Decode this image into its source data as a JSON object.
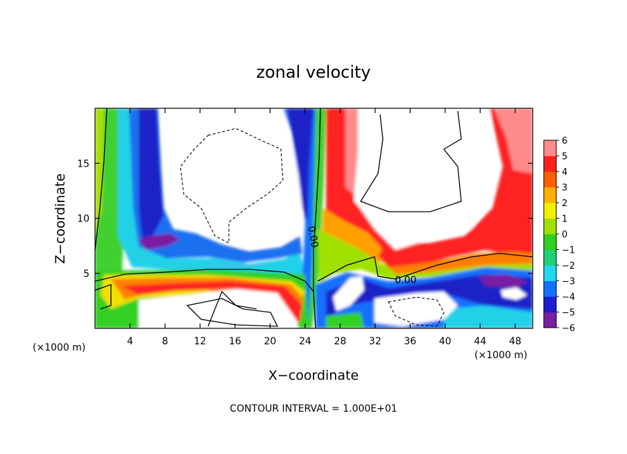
{
  "chart_data": {
    "type": "heatmap",
    "title": "zonal velocity",
    "xlabel": "X−coordinate",
    "ylabel": "Z−coordinate",
    "x_unit_left": "(×1000 m)",
    "x_unit_right": "(×1000 m)",
    "footer": "CONTOUR INTERVAL = 1.000E+01",
    "xlim": [
      0,
      50
    ],
    "ylim": [
      0,
      20
    ],
    "x_ticks": [
      4,
      8,
      12,
      16,
      20,
      24,
      28,
      32,
      36,
      40,
      44,
      48
    ],
    "x_tick_labels": [
      "4",
      "8",
      "12",
      "16",
      "20",
      "24",
      "28",
      "32",
      "36",
      "40",
      "44",
      "48"
    ],
    "y_ticks": [
      5,
      10,
      15
    ],
    "y_tick_labels": [
      "5",
      "10",
      "15"
    ],
    "colorbar": {
      "range": [
        -6,
        6
      ],
      "ticks": [
        6,
        5,
        4,
        3,
        2,
        1,
        0,
        -1,
        -2,
        -3,
        -4,
        -5,
        -6
      ],
      "tick_labels": [
        "6",
        "5",
        "4",
        "3",
        "2",
        "1",
        "0",
        "−1",
        "−2",
        "−3",
        "−4",
        "−5",
        "−6"
      ],
      "colors_low_to_high": [
        "#7a1fa2",
        "#1a1fd0",
        "#1470ff",
        "#22d8f0",
        "#1fd07a",
        "#30d020",
        "#a0e000",
        "#f0f000",
        "#ffb000",
        "#ff6000",
        "#ff1f1f",
        "#ff8a8a"
      ],
      "note": "values outside the range are left white"
    },
    "contour_labels": [
      "0.00",
      "0.00"
    ],
    "grid": false
  }
}
